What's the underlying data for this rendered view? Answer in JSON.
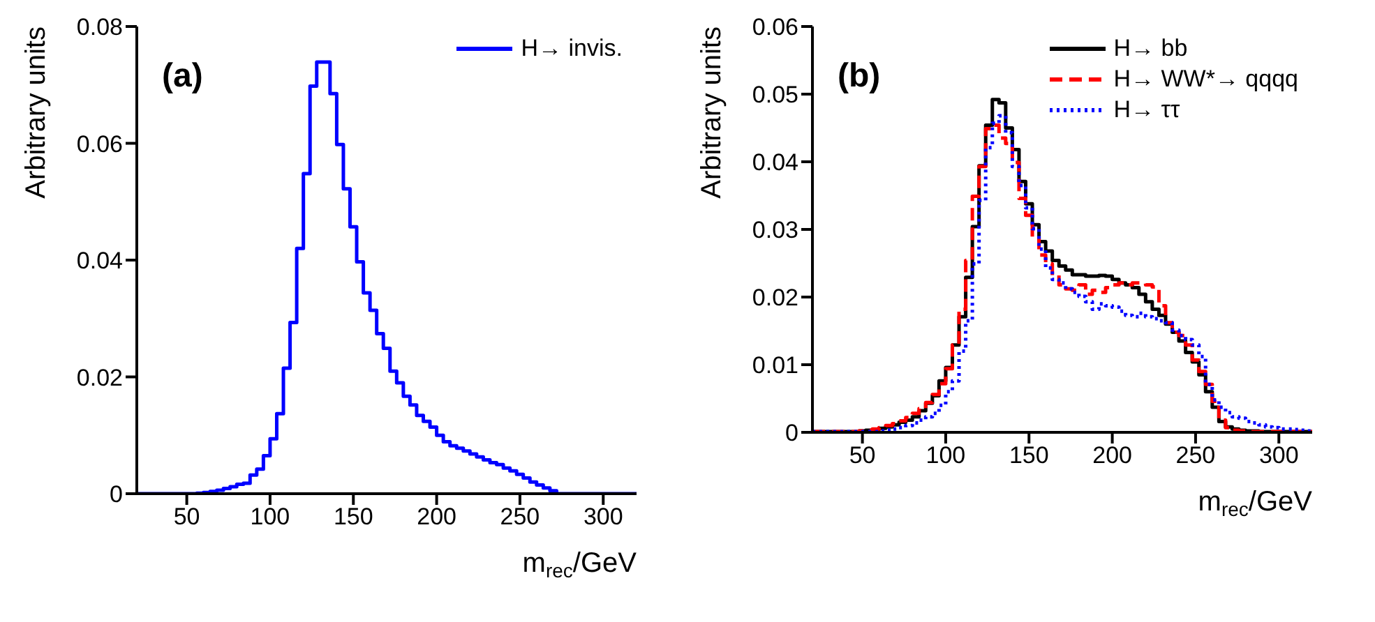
{
  "chart_data": [
    {
      "type": "histogram",
      "xlabel": "m$_{rec}$/GeV",
      "ylabel": "Arbitrary units",
      "annotations": [
        "(a)"
      ],
      "bins": [
        20,
        24,
        28,
        32,
        36,
        40,
        44,
        48,
        52,
        56,
        60,
        64,
        68,
        72,
        76,
        80,
        84,
        88,
        92,
        96,
        100,
        104,
        108,
        112,
        116,
        120,
        124,
        128,
        132,
        136,
        140,
        144,
        148,
        152,
        156,
        160,
        164,
        168,
        172,
        176,
        180,
        184,
        188,
        192,
        196,
        200,
        204,
        208,
        212,
        216,
        220,
        224,
        228,
        232,
        236,
        240,
        244,
        248,
        252,
        256,
        260,
        264,
        268,
        272,
        276,
        280,
        284,
        288,
        292,
        296,
        300,
        304,
        308,
        312,
        316,
        320
      ],
      "series": [
        {
          "name": "H→ invis.",
          "color": "#0000ff",
          "line_style": "solid",
          "values": [
            0,
            0,
            0,
            0,
            0,
            0,
            0,
            0,
            0,
            0.0001,
            0.0002,
            0.0004,
            0.0006,
            0.0009,
            0.0012,
            0.0016,
            0.0018,
            0.0032,
            0.0042,
            0.0065,
            0.0094,
            0.0137,
            0.0215,
            0.0293,
            0.042,
            0.0548,
            0.0698,
            0.0739,
            0.0739,
            0.0685,
            0.0598,
            0.0522,
            0.0457,
            0.0397,
            0.0344,
            0.0314,
            0.0274,
            0.0249,
            0.021,
            0.019,
            0.0167,
            0.0152,
            0.0134,
            0.0124,
            0.0114,
            0.01,
            0.0089,
            0.0082,
            0.0078,
            0.0073,
            0.0068,
            0.0063,
            0.0058,
            0.0053,
            0.005,
            0.0044,
            0.0039,
            0.0033,
            0.0027,
            0.002,
            0.0015,
            0.001,
            0.0005,
            0,
            0,
            0,
            0,
            0,
            0,
            0,
            0,
            0,
            0,
            0,
            0
          ]
        }
      ],
      "xlim": [
        20,
        320
      ],
      "xticks": [
        50,
        100,
        150,
        200,
        250,
        300
      ],
      "ylim": [
        0,
        0.08
      ],
      "yticks": [
        0,
        0.02,
        0.04,
        0.06,
        0.08
      ],
      "grid": false,
      "legend": "top right"
    },
    {
      "type": "histogram",
      "xlabel": "m$_{rec}$/GeV",
      "ylabel": "Arbitrary units",
      "annotations": [
        "(b)"
      ],
      "bins": [
        20,
        24,
        28,
        32,
        36,
        40,
        44,
        48,
        52,
        56,
        60,
        64,
        68,
        72,
        76,
        80,
        84,
        88,
        92,
        96,
        100,
        104,
        108,
        112,
        116,
        120,
        124,
        128,
        132,
        136,
        140,
        144,
        148,
        152,
        156,
        160,
        164,
        168,
        172,
        176,
        180,
        184,
        188,
        192,
        196,
        200,
        204,
        208,
        212,
        216,
        220,
        224,
        228,
        232,
        236,
        240,
        244,
        248,
        252,
        256,
        260,
        264,
        268,
        272,
        276,
        280,
        284,
        288,
        292,
        296,
        300,
        304,
        308,
        312,
        316,
        320
      ],
      "series": [
        {
          "name": "H→ bb",
          "color": "#000000",
          "line_style": "solid",
          "values": [
            0.0001,
            0.0001,
            0.0001,
            0.0001,
            0.0001,
            0.0001,
            0.0001,
            0.0002,
            0.0003,
            0.0004,
            0.0006,
            0.0008,
            0.0011,
            0.0015,
            0.0018,
            0.0023,
            0.0032,
            0.0043,
            0.0054,
            0.0076,
            0.0096,
            0.0129,
            0.0171,
            0.0229,
            0.0304,
            0.0394,
            0.0454,
            0.0492,
            0.0487,
            0.045,
            0.0418,
            0.0371,
            0.0338,
            0.0307,
            0.0282,
            0.0268,
            0.0254,
            0.0246,
            0.024,
            0.0233,
            0.0233,
            0.0231,
            0.0231,
            0.0232,
            0.0231,
            0.0226,
            0.0221,
            0.0218,
            0.0214,
            0.0204,
            0.0193,
            0.0182,
            0.0173,
            0.016,
            0.0148,
            0.0135,
            0.0118,
            0.0104,
            0.0085,
            0.006,
            0.0037,
            0.0016,
            0.0008,
            0.0005,
            0.0003,
            0.0002,
            0.0002,
            0.0001,
            0.0001,
            0.0001,
            0.0001,
            0.0001,
            0.0001,
            0.0001,
            0.0001
          ]
        },
        {
          "name": "H→ WW*→ qqqq",
          "color": "#ff0000",
          "line_style": "dashed",
          "values": [
            0.0001,
            0.0001,
            0.0001,
            0.0001,
            0.0001,
            0.0001,
            0.0001,
            0.0002,
            0.0003,
            0.0005,
            0.0007,
            0.001,
            0.0013,
            0.0017,
            0.0022,
            0.0028,
            0.0035,
            0.0044,
            0.0056,
            0.0072,
            0.0094,
            0.0129,
            0.0182,
            0.0254,
            0.0349,
            0.0393,
            0.0449,
            0.0454,
            0.0435,
            0.0427,
            0.0399,
            0.0346,
            0.0321,
            0.0287,
            0.0262,
            0.0249,
            0.0232,
            0.0218,
            0.0212,
            0.021,
            0.0218,
            0.0204,
            0.021,
            0.0207,
            0.0214,
            0.0218,
            0.0221,
            0.0218,
            0.0221,
            0.0221,
            0.0218,
            0.0215,
            0.0187,
            0.0162,
            0.0148,
            0.0143,
            0.0129,
            0.0107,
            0.009,
            0.0071,
            0.0046,
            0.0018,
            0.0007,
            0.0003,
            0.0002,
            0.0001,
            0.0001,
            0.0001,
            0.0001,
            0.0001,
            0.0001,
            0.0001,
            0.0001,
            0.0001,
            0.0001
          ]
        },
        {
          "name": "H→ ττ",
          "color": "#0000ff",
          "line_style": "dotted",
          "values": [
            0.0001,
            0.0001,
            0.0001,
            0.0001,
            0.0001,
            0.0001,
            0.0001,
            0.0001,
            0.0001,
            0.0001,
            0.0002,
            0.0003,
            0.0005,
            0.0007,
            0.001,
            0.0014,
            0.0018,
            0.0023,
            0.0028,
            0.004,
            0.006,
            0.0076,
            0.012,
            0.0165,
            0.0249,
            0.0343,
            0.0421,
            0.0457,
            0.0468,
            0.0443,
            0.0393,
            0.0365,
            0.0332,
            0.0301,
            0.0271,
            0.0243,
            0.0226,
            0.0221,
            0.0212,
            0.0207,
            0.0201,
            0.0193,
            0.0182,
            0.019,
            0.0187,
            0.0185,
            0.0179,
            0.0173,
            0.0171,
            0.0176,
            0.0171,
            0.0168,
            0.0165,
            0.0162,
            0.0151,
            0.0143,
            0.0137,
            0.0129,
            0.0112,
            0.0071,
            0.0048,
            0.0037,
            0.0029,
            0.0023,
            0.0021,
            0.0016,
            0.0014,
            0.0011,
            0.0008,
            0.0007,
            0.0005,
            0.0005,
            0.0004,
            0.0003,
            0.0002
          ]
        }
      ],
      "xlim": [
        20,
        320
      ],
      "xticks": [
        50,
        100,
        150,
        200,
        250,
        300
      ],
      "ylim": [
        0,
        0.06
      ],
      "yticks": [
        0,
        0.01,
        0.02,
        0.03,
        0.04,
        0.05,
        0.06
      ],
      "grid": false,
      "legend": "top right"
    }
  ]
}
